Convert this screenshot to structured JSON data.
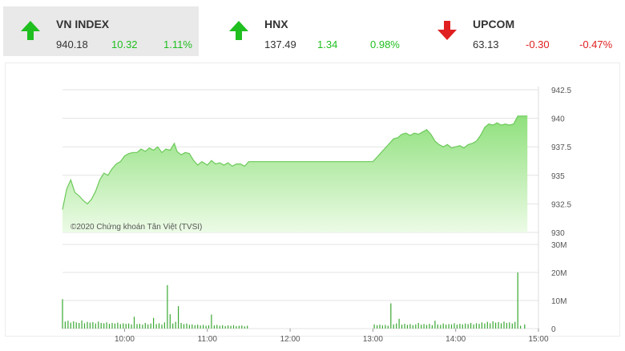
{
  "indices": [
    {
      "name": "VN INDEX",
      "value": "940.18",
      "change": "10.32",
      "percent": "1.11%",
      "direction": "up",
      "active": true
    },
    {
      "name": "HNX",
      "value": "137.49",
      "change": "1.34",
      "percent": "0.98%",
      "direction": "up",
      "active": false
    },
    {
      "name": "UPCOM",
      "value": "63.13",
      "change": "-0.30",
      "percent": "-0.47%",
      "direction": "down",
      "active": false
    }
  ],
  "colors": {
    "up": "#1fbf1f",
    "down": "#e02020",
    "area_top": "#8fe07c",
    "area_bottom": "#ecfbe6",
    "volume": "#3aa832"
  },
  "chart_data": {
    "type": "area",
    "watermark": "©2020 Chứng khoán Tân Việt (TVSI)",
    "x_ticks": [
      "10:00",
      "11:00",
      "12:00",
      "13:00",
      "14:00",
      "15:00"
    ],
    "price_ticks": [
      "942.5",
      "940",
      "937.5",
      "935",
      "932.5",
      "930"
    ],
    "volume_ticks": [
      "30M",
      "20M",
      "10M",
      "0"
    ],
    "ylim": [
      930,
      942.5
    ],
    "volume_ylim": [
      0,
      30
    ],
    "price_series": [
      [
        "09:15",
        932.0
      ],
      [
        "09:18",
        933.8
      ],
      [
        "09:21",
        934.6
      ],
      [
        "09:24",
        933.5
      ],
      [
        "09:27",
        933.2
      ],
      [
        "09:30",
        932.8
      ],
      [
        "09:33",
        932.5
      ],
      [
        "09:36",
        932.9
      ],
      [
        "09:39",
        933.6
      ],
      [
        "09:42",
        934.6
      ],
      [
        "09:45",
        935.2
      ],
      [
        "09:48",
        935.0
      ],
      [
        "09:51",
        935.6
      ],
      [
        "09:54",
        936.0
      ],
      [
        "09:57",
        936.2
      ],
      [
        "10:00",
        936.7
      ],
      [
        "10:03",
        936.9
      ],
      [
        "10:06",
        937.0
      ],
      [
        "10:09",
        937.0
      ],
      [
        "10:12",
        937.3
      ],
      [
        "10:15",
        937.1
      ],
      [
        "10:18",
        937.4
      ],
      [
        "10:21",
        937.2
      ],
      [
        "10:24",
        937.5
      ],
      [
        "10:27",
        937.0
      ],
      [
        "10:30",
        937.3
      ],
      [
        "10:33",
        937.2
      ],
      [
        "10:36",
        937.8
      ],
      [
        "10:38",
        937.1
      ],
      [
        "10:41",
        936.8
      ],
      [
        "10:44",
        937.0
      ],
      [
        "10:47",
        936.9
      ],
      [
        "10:50",
        936.3
      ],
      [
        "10:53",
        935.9
      ],
      [
        "10:56",
        936.2
      ],
      [
        "11:00",
        935.9
      ],
      [
        "11:03",
        936.3
      ],
      [
        "11:06",
        936.0
      ],
      [
        "11:09",
        936.1
      ],
      [
        "11:12",
        935.9
      ],
      [
        "11:15",
        936.1
      ],
      [
        "11:18",
        935.8
      ],
      [
        "11:21",
        936.0
      ],
      [
        "11:24",
        936.0
      ],
      [
        "11:27",
        935.8
      ],
      [
        "11:30",
        936.2
      ],
      [
        "13:00",
        936.2
      ],
      [
        "13:03",
        936.6
      ],
      [
        "13:06",
        937.0
      ],
      [
        "13:09",
        937.4
      ],
      [
        "13:12",
        937.8
      ],
      [
        "13:15",
        938.2
      ],
      [
        "13:18",
        938.3
      ],
      [
        "13:21",
        938.6
      ],
      [
        "13:24",
        938.7
      ],
      [
        "13:27",
        938.5
      ],
      [
        "13:30",
        938.7
      ],
      [
        "13:33",
        938.6
      ],
      [
        "13:36",
        938.8
      ],
      [
        "13:39",
        939.0
      ],
      [
        "13:42",
        938.6
      ],
      [
        "13:45",
        938.0
      ],
      [
        "13:48",
        937.7
      ],
      [
        "13:51",
        937.5
      ],
      [
        "13:54",
        937.7
      ],
      [
        "13:57",
        937.4
      ],
      [
        "14:00",
        937.5
      ],
      [
        "14:03",
        937.6
      ],
      [
        "14:06",
        937.4
      ],
      [
        "14:09",
        937.7
      ],
      [
        "14:12",
        937.8
      ],
      [
        "14:15",
        938.0
      ],
      [
        "14:18",
        938.5
      ],
      [
        "14:21",
        939.2
      ],
      [
        "14:24",
        939.5
      ],
      [
        "14:27",
        939.4
      ],
      [
        "14:30",
        939.6
      ],
      [
        "14:33",
        939.4
      ],
      [
        "14:36",
        939.5
      ],
      [
        "14:39",
        939.4
      ],
      [
        "14:42",
        939.5
      ],
      [
        "14:45",
        940.2
      ],
      [
        "14:48",
        940.2
      ],
      [
        "14:52",
        940.2
      ]
    ],
    "volume_series": [
      [
        "09:15",
        10.5
      ],
      [
        "09:17",
        2.5
      ],
      [
        "09:19",
        2.8
      ],
      [
        "09:21",
        2.1
      ],
      [
        "09:23",
        2.6
      ],
      [
        "09:25",
        2.2
      ],
      [
        "09:27",
        2.0
      ],
      [
        "09:29",
        2.9
      ],
      [
        "09:31",
        1.9
      ],
      [
        "09:33",
        2.4
      ],
      [
        "09:35",
        2.1
      ],
      [
        "09:37",
        2.3
      ],
      [
        "09:39",
        1.8
      ],
      [
        "09:41",
        2.5
      ],
      [
        "09:43",
        2.0
      ],
      [
        "09:45",
        1.9
      ],
      [
        "09:47",
        2.2
      ],
      [
        "09:49",
        1.7
      ],
      [
        "09:51",
        2.0
      ],
      [
        "09:53",
        1.8
      ],
      [
        "09:55",
        2.1
      ],
      [
        "09:57",
        1.6
      ],
      [
        "09:59",
        1.9
      ],
      [
        "10:01",
        1.7
      ],
      [
        "10:03",
        1.8
      ],
      [
        "10:05",
        1.5
      ],
      [
        "10:07",
        4.2
      ],
      [
        "10:09",
        1.6
      ],
      [
        "10:11",
        1.7
      ],
      [
        "10:13",
        1.4
      ],
      [
        "10:15",
        2.0
      ],
      [
        "10:17",
        1.5
      ],
      [
        "10:19",
        1.8
      ],
      [
        "10:21",
        3.8
      ],
      [
        "10:23",
        1.6
      ],
      [
        "10:25",
        1.9
      ],
      [
        "10:27",
        1.4
      ],
      [
        "10:29",
        2.2
      ],
      [
        "10:31",
        15.5
      ],
      [
        "10:33",
        5.1
      ],
      [
        "10:35",
        1.8
      ],
      [
        "10:37",
        2.4
      ],
      [
        "10:39",
        8.0
      ],
      [
        "10:41",
        2.0
      ],
      [
        "10:43",
        1.6
      ],
      [
        "10:45",
        1.8
      ],
      [
        "10:47",
        1.3
      ],
      [
        "10:49",
        1.5
      ],
      [
        "10:51",
        1.2
      ],
      [
        "10:53",
        1.4
      ],
      [
        "10:55",
        1.1
      ],
      [
        "10:57",
        1.3
      ],
      [
        "10:59",
        1.0
      ],
      [
        "11:01",
        1.2
      ],
      [
        "11:03",
        5.0
      ],
      [
        "11:05",
        1.1
      ],
      [
        "11:07",
        1.3
      ],
      [
        "11:09",
        1.0
      ],
      [
        "11:11",
        1.2
      ],
      [
        "11:13",
        0.9
      ],
      [
        "11:15",
        1.1
      ],
      [
        "11:17",
        1.0
      ],
      [
        "11:19",
        1.2
      ],
      [
        "11:21",
        0.9
      ],
      [
        "11:23",
        1.0
      ],
      [
        "11:25",
        1.1
      ],
      [
        "11:27",
        0.8
      ],
      [
        "11:29",
        1.0
      ],
      [
        "13:01",
        1.5
      ],
      [
        "13:03",
        1.2
      ],
      [
        "13:05",
        1.4
      ],
      [
        "13:07",
        1.1
      ],
      [
        "13:09",
        1.3
      ],
      [
        "13:11",
        1.0
      ],
      [
        "13:13",
        9.0
      ],
      [
        "13:15",
        1.5
      ],
      [
        "13:17",
        1.8
      ],
      [
        "13:19",
        3.5
      ],
      [
        "13:21",
        1.4
      ],
      [
        "13:23",
        1.7
      ],
      [
        "13:25",
        1.3
      ],
      [
        "13:27",
        1.6
      ],
      [
        "13:29",
        1.2
      ],
      [
        "13:31",
        1.5
      ],
      [
        "13:33",
        2.0
      ],
      [
        "13:35",
        1.4
      ],
      [
        "13:37",
        1.6
      ],
      [
        "13:39",
        1.3
      ],
      [
        "13:41",
        1.7
      ],
      [
        "13:43",
        1.2
      ],
      [
        "13:45",
        2.8
      ],
      [
        "13:47",
        1.5
      ],
      [
        "13:49",
        1.3
      ],
      [
        "13:51",
        1.8
      ],
      [
        "13:53",
        1.4
      ],
      [
        "13:55",
        1.6
      ],
      [
        "13:57",
        1.5
      ],
      [
        "13:59",
        1.9
      ],
      [
        "14:01",
        1.4
      ],
      [
        "14:03",
        1.7
      ],
      [
        "14:05",
        1.5
      ],
      [
        "14:07",
        1.8
      ],
      [
        "14:09",
        1.6
      ],
      [
        "14:11",
        2.0
      ],
      [
        "14:13",
        1.5
      ],
      [
        "14:15",
        1.9
      ],
      [
        "14:17",
        1.7
      ],
      [
        "14:19",
        2.2
      ],
      [
        "14:21",
        1.8
      ],
      [
        "14:23",
        2.4
      ],
      [
        "14:25",
        1.9
      ],
      [
        "14:27",
        2.6
      ],
      [
        "14:29",
        2.1
      ],
      [
        "14:31",
        2.3
      ],
      [
        "14:33",
        1.9
      ],
      [
        "14:35",
        2.5
      ],
      [
        "14:37",
        2.0
      ],
      [
        "14:39",
        2.2
      ],
      [
        "14:41",
        1.8
      ],
      [
        "14:43",
        2.4
      ],
      [
        "14:45",
        20.0
      ],
      [
        "14:47",
        1.0
      ],
      [
        "14:50",
        1.5
      ]
    ]
  }
}
